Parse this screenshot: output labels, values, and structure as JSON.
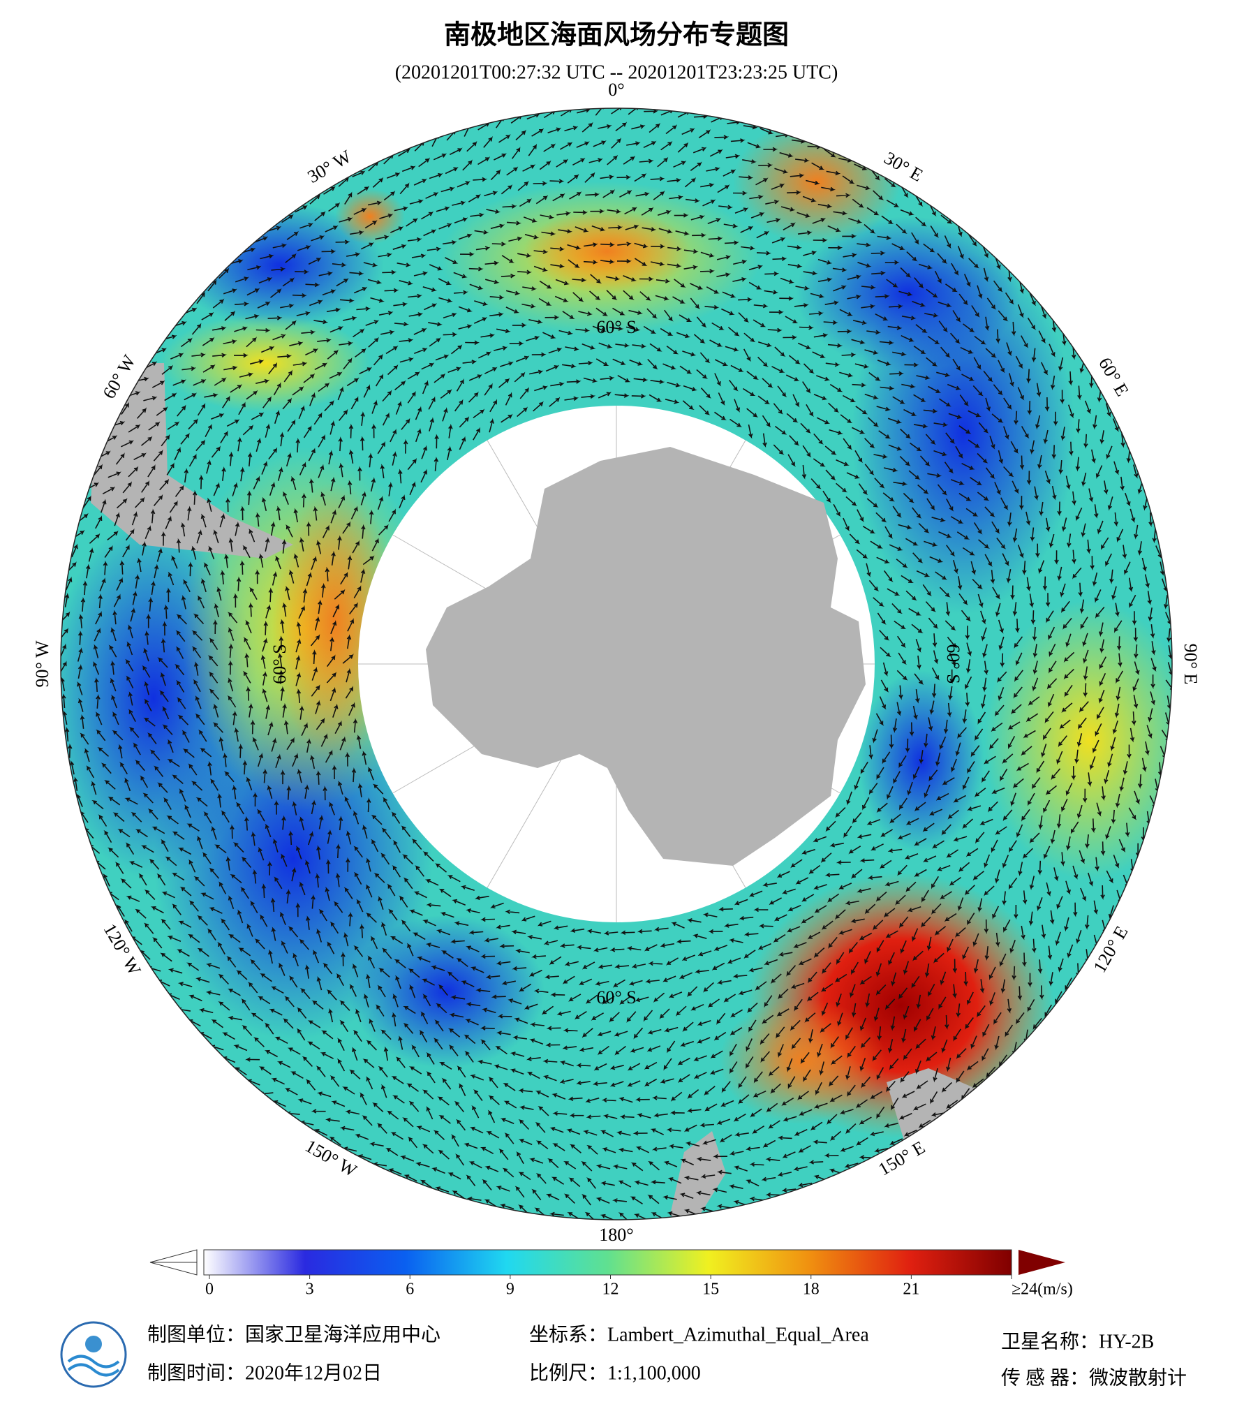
{
  "title": "南极地区海面风场分布专题图",
  "subtitle": "(20201201T00:27:32 UTC -- 20201201T23:23:25 UTC)",
  "map": {
    "lon_labels": [
      "0°",
      "30° E",
      "60° E",
      "90° E",
      "120° E",
      "150° E",
      "180°",
      "150° W",
      "120° W",
      "90° W",
      "60° W",
      "30° W"
    ],
    "lat_labels": [
      "60° S",
      "60° S",
      "60° S",
      "60° S"
    ]
  },
  "colorbar": {
    "lim": [
      0,
      24
    ],
    "ticks": [
      0,
      3,
      6,
      9,
      12,
      15,
      18,
      21,
      {
        "value": 24,
        "label": "≥24(m/s)"
      }
    ],
    "colors": [
      "#ffffff",
      "#2a2ae0",
      "#0a60f0",
      "#20d8f0",
      "#60e090",
      "#f0f020",
      "#f09010",
      "#e02010",
      "#800000"
    ]
  },
  "footer": {
    "unit": "制图单位：国家卫星海洋应用中心",
    "time": "制图时间：2020年12月02日",
    "projection": "坐标系：Lambert_Azimuthal_Equal_Area",
    "scale": "比例尺：1:1,100,000",
    "satellite": "卫星名称：HY-2B",
    "sensor": "传 感 器：微波散射计"
  }
}
